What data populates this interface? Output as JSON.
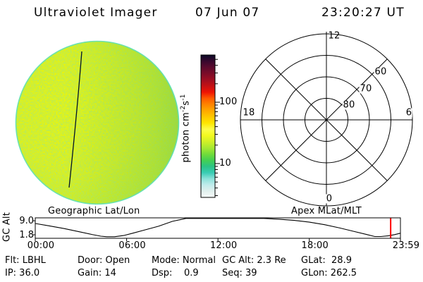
{
  "header": {
    "title": "Ultraviolet Imager",
    "date": "07 Jun 07",
    "time": "23:20:27 UT"
  },
  "colorbar": {
    "unit_main": "photon cm",
    "unit_sup1": "-2",
    "unit_mid": "s",
    "unit_sup2": "-1"
  },
  "polar": {
    "title": "Apex MLat/MLT",
    "mlt_top": "12",
    "mlt_left": "18",
    "mlt_right": "6",
    "mlt_bottom": "0",
    "mlat_80": "80",
    "mlat_70": "70",
    "mlat_60": "60"
  },
  "strip": {
    "title_left": "Geographic Lat/Lon",
    "ylabel": "GC Alt"
  },
  "status": {
    "columns": [
      {
        "row1": "Flt: LBHL",
        "row2": "IP: 36.0"
      },
      {
        "row1": "Door: Open",
        "row2": "Gain: 14"
      },
      {
        "row1": "Mode: Normal",
        "row2": "Dsp:    0.9"
      },
      {
        "row1": "GC Alt: 2.3 Re",
        "row2": "Seq: 39"
      },
      {
        "row1": "GLat:  28.9",
        "row2": "GLon: 262.5"
      }
    ]
  },
  "disk": {
    "base_color": "#eef200",
    "green_tint": "#a8dd30",
    "rim_color": "#58dfc2",
    "terminator_color": "#001228"
  },
  "chart_data": [
    {
      "type": "heatmap",
      "title": "UVI full-disk image",
      "description": "Noisy yellow-green Earth disk (UV airglow) with a thin dark line crossing it from top-centre to bottom-centre-left",
      "colorbar": {
        "scale": "log",
        "unit": "photon cm-2 s-1",
        "major_ticks": [
          100,
          10
        ],
        "minor_ticks": [
          500,
          400,
          300,
          200,
          90,
          80,
          70,
          60,
          50,
          40,
          30,
          20,
          9,
          8,
          7,
          6,
          5,
          4,
          3
        ],
        "range_approx": [
          3,
          560
        ],
        "stops_top_to_bottom": [
          "#0a0a28",
          "#38082e",
          "#5c0a2e",
          "#7c0c28",
          "#9e0e22",
          "#c41114",
          "#ee1404",
          "#ff5a00",
          "#ff8400",
          "#ffa800",
          "#ffc800",
          "#ffe600",
          "#fdfd4a",
          "#f2fa20",
          "#d0f028",
          "#a6e832",
          "#72dc3a",
          "#44d052",
          "#2cc484",
          "#38ccb4",
          "#8ce2da",
          "#c2ecec",
          "#e2f0ee",
          "#f8fcfa"
        ]
      }
    },
    {
      "type": "polar-grid",
      "title": "Apex MLat/MLT",
      "mlat_rings": [
        80,
        70,
        60,
        50
      ],
      "ring_labels": [
        "80",
        "70",
        "60"
      ],
      "mlt_hour_labels": [
        "12",
        "18",
        "6",
        "0"
      ],
      "spoke_step_deg": 45
    },
    {
      "type": "line",
      "title": "GC Alt",
      "ylabel": "GC Alt",
      "yticks": [
        {
          "label": "9.0",
          "v": 9.0
        },
        {
          "label": "1.8",
          "v": 1.8
        }
      ],
      "xticks": [
        {
          "label": "00:00",
          "hour": 0
        },
        {
          "label": "06:00",
          "hour": 6
        },
        {
          "label": "12:00",
          "hour": 12
        },
        {
          "label": "18:00",
          "hour": 18
        },
        {
          "label": "23:59",
          "hour": 23.983
        }
      ],
      "marker": {
        "color": "#ff0000",
        "time_hours": 23.341,
        "time_label": "23:20:27 UT"
      },
      "series": {
        "name": "GC Alt (Re)",
        "x_hours": [
          0,
          0.9,
          1.9,
          2.8,
          3.7,
          4.3,
          4.7,
          5.2,
          5.8,
          6.4,
          7.2,
          8.1,
          9.0,
          9.9,
          10.8,
          12.0,
          13.0,
          14.0,
          15.0,
          16.0,
          17.0,
          18.0,
          19.0,
          20.0,
          21.0,
          21.8,
          22.3,
          22.7,
          23.2,
          23.6,
          23.98
        ],
        "y_re": [
          7.6,
          6.4,
          5.0,
          3.5,
          2.0,
          1.1,
          0.8,
          0.8,
          1.4,
          2.6,
          4.3,
          6.2,
          8.7,
          10.2,
          10.5,
          10.6,
          10.6,
          10.5,
          10.3,
          9.8,
          9.2,
          8.3,
          7.0,
          5.3,
          3.4,
          1.9,
          0.9,
          0.9,
          1.3,
          1.9,
          2.6
        ]
      }
    }
  ]
}
